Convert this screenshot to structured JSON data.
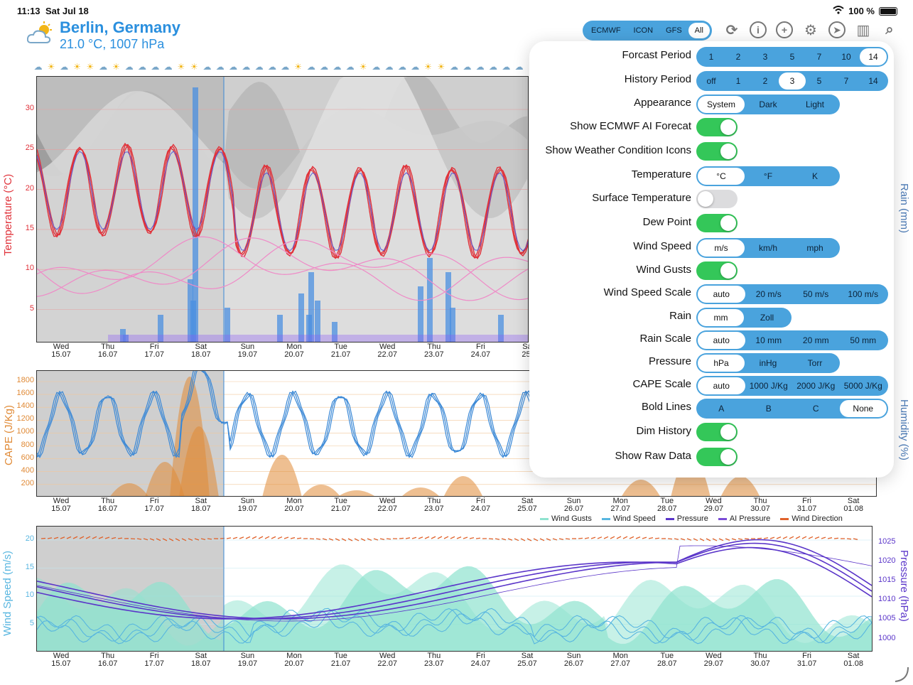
{
  "status": {
    "time": "11:13",
    "date": "Sat Jul 18",
    "battery": "100 %"
  },
  "location": {
    "city": "Berlin, Germany",
    "conditions": "21.0 °C, 1007 hPa"
  },
  "models": {
    "items": [
      "ECMWF",
      "ICON",
      "GFS",
      "All"
    ],
    "selected": "All"
  },
  "toolbar": [
    "refresh-icon",
    "info-icon",
    "add-icon",
    "settings-gear-icon",
    "location-arrow-icon",
    "map-icon",
    "search-icon"
  ],
  "charts": {
    "temp": {
      "ylabel": "Temperature (°C)",
      "y2label": "Rain (mm)",
      "yticks": [
        "30",
        "25",
        "20",
        "15",
        "10",
        "5"
      ]
    },
    "cape": {
      "ylabel": "CAPE (J/Kg)",
      "y2label": "Humidity (%)",
      "yticks": [
        "1800",
        "1600",
        "1400",
        "1200",
        "1000",
        "800",
        "600",
        "400",
        "200"
      ]
    },
    "wind": {
      "ylabel": "Wind Speed (m/s)",
      "y2label": "Pressure (hPa)",
      "yticks": [
        "20",
        "15",
        "10",
        "5"
      ],
      "y2ticks": [
        "1025",
        "1020",
        "1015",
        "1010",
        "1005",
        "1000"
      ]
    },
    "xticks_temp": [
      {
        "day": "Wed",
        "date": "15.07"
      },
      {
        "day": "Thu",
        "date": "16.07"
      },
      {
        "day": "Fri",
        "date": "17.07"
      },
      {
        "day": "Sat",
        "date": "18.07"
      },
      {
        "day": "Sun",
        "date": "19.07"
      },
      {
        "day": "Mon",
        "date": "20.07"
      },
      {
        "day": "Tue",
        "date": "21.07"
      },
      {
        "day": "Wed",
        "date": "22.07"
      },
      {
        "day": "Thu",
        "date": "23.07"
      },
      {
        "day": "Fri",
        "date": "24.07"
      },
      {
        "day": "Sa",
        "date": "25."
      }
    ],
    "xticks_full": [
      {
        "day": "Wed",
        "date": "15.07"
      },
      {
        "day": "Thu",
        "date": "16.07"
      },
      {
        "day": "Fri",
        "date": "17.07"
      },
      {
        "day": "Sat",
        "date": "18.07"
      },
      {
        "day": "Sun",
        "date": "19.07"
      },
      {
        "day": "Mon",
        "date": "20.07"
      },
      {
        "day": "Tue",
        "date": "21.07"
      },
      {
        "day": "Wed",
        "date": "22.07"
      },
      {
        "day": "Thu",
        "date": "23.07"
      },
      {
        "day": "Fri",
        "date": "24.07"
      },
      {
        "day": "Sat",
        "date": "25.07"
      },
      {
        "day": "Sun",
        "date": "26.07"
      },
      {
        "day": "Mon",
        "date": "27.07"
      },
      {
        "day": "Tue",
        "date": "28.07"
      },
      {
        "day": "Wed",
        "date": "29.07"
      },
      {
        "day": "Thu",
        "date": "30.07"
      },
      {
        "day": "Fri",
        "date": "31.07"
      },
      {
        "day": "Sat",
        "date": "01.08"
      }
    ],
    "legend": [
      {
        "label": "Wind Gusts",
        "color": "#8fe3cf"
      },
      {
        "label": "Wind Speed",
        "color": "#58b6e0"
      },
      {
        "label": "Pressure",
        "color": "#5a35c9"
      },
      {
        "label": "AI Pressure",
        "color": "#7a4bd6"
      },
      {
        "label": "Wind Direction",
        "color": "#e0622b"
      }
    ],
    "colors": {
      "temp": "#e0323a",
      "dew": "#ef8ac7",
      "rain": "#4a8fe0",
      "cape": "#e08a36",
      "humidity": "#3a88d6",
      "gust": "#8fe3cf",
      "wind": "#58b6e0",
      "pressure": "#5a35c9",
      "direction": "#e0622b",
      "history": "#cfcfcf",
      "cloud": "#9a9a9a"
    }
  },
  "settings": [
    {
      "label": "Forcast Period",
      "type": "seg",
      "options": [
        "1",
        "2",
        "3",
        "5",
        "7",
        "10",
        "14"
      ],
      "selected": "14"
    },
    {
      "label": "History Period",
      "type": "seg",
      "options": [
        "off",
        "1",
        "2",
        "3",
        "5",
        "7",
        "14"
      ],
      "selected": "3"
    },
    {
      "label": "Appearance",
      "type": "seg",
      "options": [
        "System",
        "Dark",
        "Light"
      ],
      "selected": "System"
    },
    {
      "label": "Show ECMWF AI Forecat",
      "type": "toggle",
      "on": true
    },
    {
      "label": "Show Weather Condition Icons",
      "type": "toggle",
      "on": true
    },
    {
      "label": "Temperature",
      "type": "seg",
      "options": [
        "°C",
        "°F",
        "K"
      ],
      "selected": "°C"
    },
    {
      "label": "Surface Temperature",
      "type": "toggle",
      "on": false
    },
    {
      "label": "Dew Point",
      "type": "toggle",
      "on": true
    },
    {
      "label": "Wind Speed",
      "type": "seg",
      "options": [
        "m/s",
        "km/h",
        "mph"
      ],
      "selected": "m/s"
    },
    {
      "label": "Wind Gusts",
      "type": "toggle",
      "on": true
    },
    {
      "label": "Wind Speed Scale",
      "type": "seg",
      "options": [
        "auto",
        "20 m/s",
        "50 m/s",
        "100 m/s"
      ],
      "selected": "auto"
    },
    {
      "label": "Rain",
      "type": "seg",
      "options": [
        "mm",
        "Zoll"
      ],
      "selected": "mm"
    },
    {
      "label": "Rain Scale",
      "type": "seg",
      "options": [
        "auto",
        "10 mm",
        "20 mm",
        "50 mm"
      ],
      "selected": "auto"
    },
    {
      "label": "Pressure",
      "type": "seg",
      "options": [
        "hPa",
        "inHg",
        "Torr"
      ],
      "selected": "hPa"
    },
    {
      "label": "CAPE Scale",
      "type": "seg",
      "options": [
        "auto",
        "1000 J/Kg",
        "2000 J/Kg",
        "5000 J/Kg"
      ],
      "selected": "auto"
    },
    {
      "label": "Bold Lines",
      "type": "seg",
      "options": [
        "A",
        "B",
        "C",
        "None"
      ],
      "selected": "None"
    },
    {
      "label": "Dim History",
      "type": "toggle",
      "on": true
    },
    {
      "label": "Show Raw Data",
      "type": "toggle",
      "on": true
    }
  ]
}
